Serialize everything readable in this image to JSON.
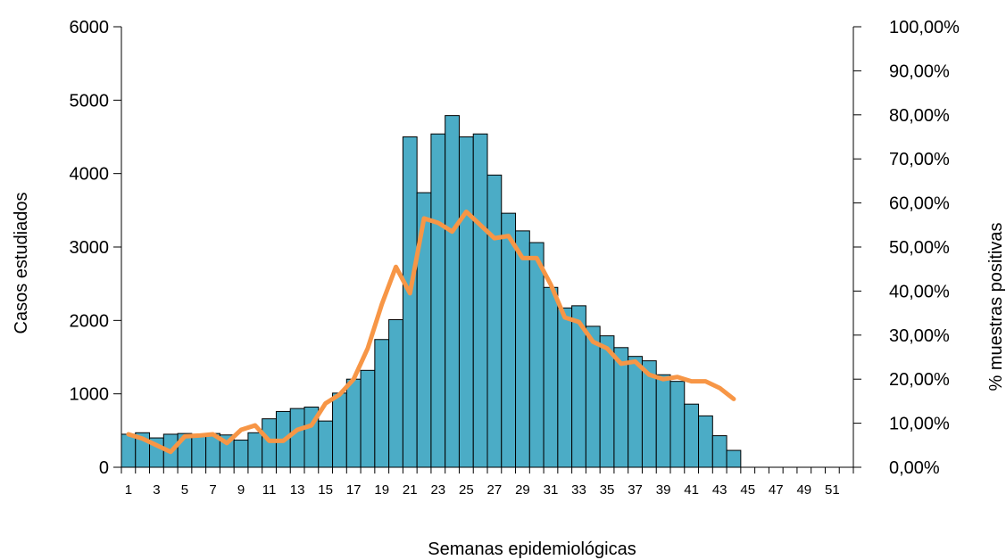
{
  "chart_data": {
    "type": "bar",
    "xlabel": "Semanas epidemiológicas",
    "ylabel": "Casos estudiados",
    "y2label": "% muestras positivas",
    "ylim": [
      0,
      6000
    ],
    "y2lim": [
      0,
      100
    ],
    "yticks": [
      "0",
      "1000",
      "2000",
      "3000",
      "4000",
      "5000",
      "6000"
    ],
    "y2ticks": [
      "0,00%",
      "10,00%",
      "20,00%",
      "30,00%",
      "40,00%",
      "50,00%",
      "60,00%",
      "70,00%",
      "80,00%",
      "90,00%",
      "100,00%"
    ],
    "xticks": [
      "1",
      "3",
      "5",
      "7",
      "9",
      "11",
      "13",
      "15",
      "17",
      "19",
      "21",
      "23",
      "25",
      "27",
      "29",
      "31",
      "33",
      "35",
      "37",
      "39",
      "41",
      "43",
      "45",
      "47",
      "49",
      "51"
    ],
    "weeks": [
      1,
      2,
      3,
      4,
      5,
      6,
      7,
      8,
      9,
      10,
      11,
      12,
      13,
      14,
      15,
      16,
      17,
      18,
      19,
      20,
      21,
      22,
      23,
      24,
      25,
      26,
      27,
      28,
      29,
      30,
      31,
      32,
      33,
      34,
      35,
      36,
      37,
      38,
      39,
      40,
      41,
      42,
      43,
      44,
      45,
      46,
      47,
      48,
      49,
      50,
      51,
      52
    ],
    "series": [
      {
        "kind": "bar",
        "axis": "left",
        "color": "#4BACC6",
        "values": [
          450,
          470,
          400,
          450,
          460,
          450,
          460,
          440,
          370,
          470,
          660,
          760,
          800,
          820,
          630,
          1010,
          1200,
          1320,
          1740,
          2010,
          4500,
          3740,
          4540,
          4790,
          4500,
          4540,
          3980,
          3460,
          3220,
          3060,
          2450,
          2170,
          2200,
          1920,
          1790,
          1630,
          1510,
          1450,
          1260,
          1170,
          860,
          700,
          430,
          230,
          0,
          0,
          0,
          0,
          0,
          0,
          0,
          0
        ]
      },
      {
        "kind": "line",
        "axis": "right",
        "color": "#F79646",
        "values": [
          7.5,
          6.5,
          5,
          3.5,
          7,
          7.2,
          7.5,
          5.5,
          8.5,
          9.5,
          6,
          6,
          8.5,
          9.5,
          14.5,
          16.5,
          20,
          27,
          37,
          45.5,
          39.5,
          56.5,
          55.5,
          53.5,
          58,
          55,
          52,
          52.5,
          47.5,
          47.5,
          41.5,
          34,
          33,
          28.5,
          27,
          23.5,
          24,
          21,
          20,
          20.5,
          19.5,
          19.5,
          18,
          15.5
        ]
      }
    ]
  }
}
